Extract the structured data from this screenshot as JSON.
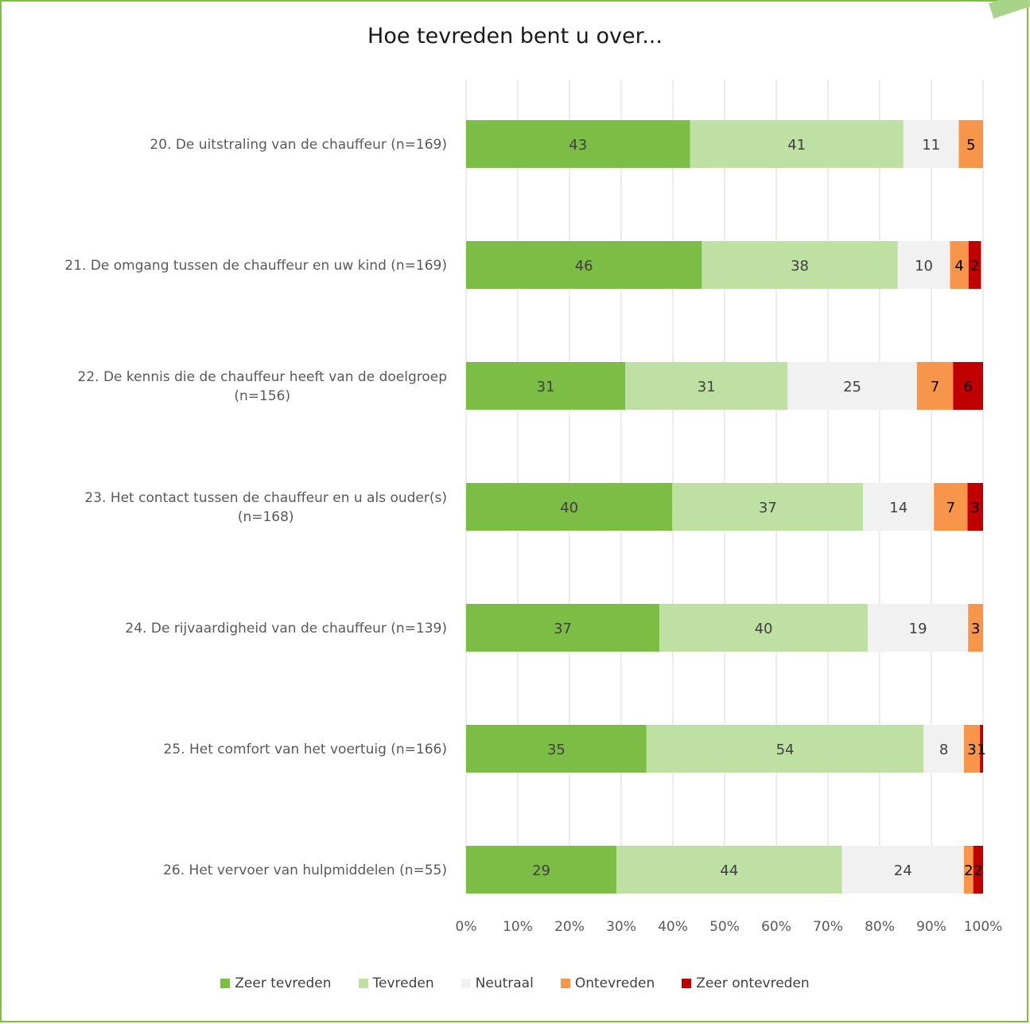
{
  "chart_data": {
    "type": "bar",
    "orientation": "horizontal",
    "stacked": "100%",
    "title": "Hoe tevreden bent u over...",
    "categories": [
      "20. De uitstraling van de chauffeur (n=169)",
      "21. De omgang tussen de chauffeur en uw kind (n=169)",
      "22. De kennis die de chauffeur heeft van de doelgroep (n=156)",
      "23. Het contact tussen de chauffeur en u als ouder(s) (n=168)",
      "24. De rijvaardigheid van de chauffeur (n=139)",
      "25. Het comfort van het voertuig (n=166)",
      "26. Het vervoer van hulpmiddelen (n=55)"
    ],
    "category_lines": [
      [
        "20. De uitstraling van de chauffeur (n=169)"
      ],
      [
        "21. De omgang tussen de chauffeur en uw kind (n=169)"
      ],
      [
        "22. De kennis die de chauffeur heeft van de doelgroep",
        "(n=156)"
      ],
      [
        "23. Het contact tussen de chauffeur en u als ouder(s)",
        "(n=168)"
      ],
      [
        "24. De rijvaardigheid van de chauffeur (n=139)"
      ],
      [
        "25. Het comfort van het voertuig (n=166)"
      ],
      [
        "26. Het vervoer van hulpmiddelen (n=55)"
      ]
    ],
    "series": [
      {
        "name": "Zeer tevreden",
        "color": "#7cbd45",
        "label_color": "#404040",
        "values": [
          43.3,
          45.6,
          30.8,
          39.9,
          37.4,
          34.9,
          29.1
        ],
        "labels": [
          "43",
          "46",
          "31",
          "40",
          "37",
          "35",
          "29"
        ]
      },
      {
        "name": "Tevreden",
        "color": "#bee0a2",
        "label_color": "#404040",
        "values": [
          41.3,
          37.9,
          31.4,
          36.9,
          40.3,
          53.6,
          43.6
        ],
        "labels": [
          "41",
          "38",
          "31",
          "37",
          "40",
          "54",
          "44"
        ]
      },
      {
        "name": "Neutraal",
        "color": "#f1f1f1",
        "label_color": "#404040",
        "values": [
          10.7,
          10.1,
          25.0,
          13.7,
          19.4,
          7.8,
          23.6
        ],
        "labels": [
          "11",
          "10",
          "25",
          "14",
          "19",
          "8",
          "24"
        ]
      },
      {
        "name": "Ontevreden",
        "color": "#f7964b",
        "label_color": "#000000",
        "values": [
          4.7,
          3.6,
          7.0,
          6.5,
          2.9,
          3.1,
          1.8
        ],
        "labels": [
          "5",
          "4",
          "7",
          "7",
          "3",
          "3",
          "2"
        ]
      },
      {
        "name": "Zeer ontevreden",
        "color": "#c00000",
        "label_color": "#000000",
        "values": [
          0,
          2.4,
          5.8,
          3.0,
          0,
          0.6,
          1.9
        ],
        "labels": [
          "",
          "2",
          "6",
          "3",
          "",
          "1",
          "2"
        ]
      }
    ],
    "xlim": [
      0,
      100
    ],
    "x_ticks": [
      "0%",
      "10%",
      "20%",
      "30%",
      "40%",
      "50%",
      "60%",
      "70%",
      "80%",
      "90%",
      "100%"
    ],
    "grid": true,
    "legend_position": "bottom"
  }
}
